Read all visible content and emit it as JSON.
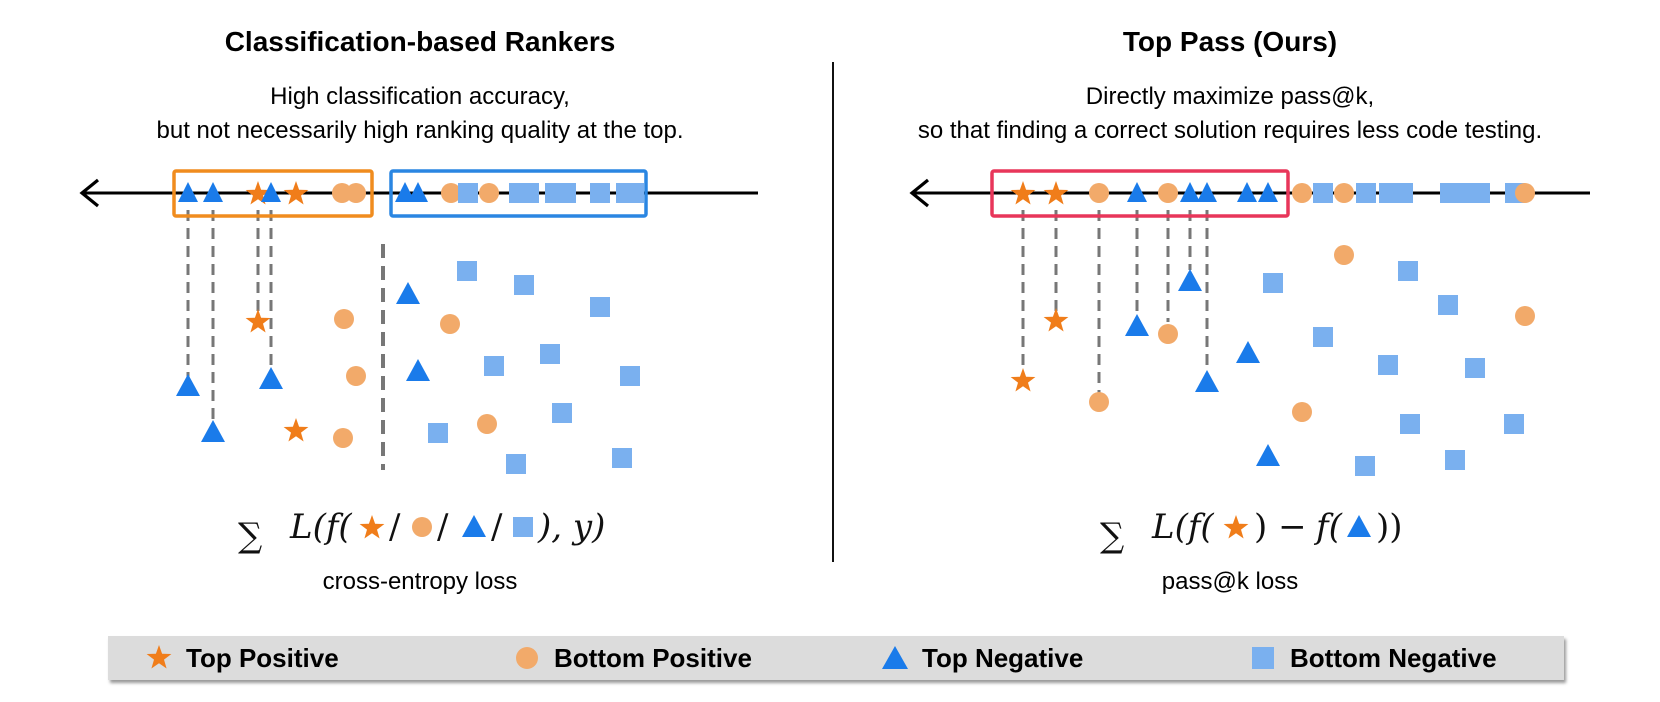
{
  "left_panel": {
    "title": "Classification-based Rankers",
    "subtitle_line1": "High classification accuracy,",
    "subtitle_line2": "but not necessarily high ranking quality at the top.",
    "loss_caption": "cross-entropy loss"
  },
  "right_panel": {
    "title": "Top Pass (Ours)",
    "subtitle_line1": "Directly maximize pass@k,",
    "subtitle_line2": "so that finding a correct solution requires less code testing.",
    "loss_caption": "pass@k loss"
  },
  "legend": {
    "top_positive": "Top Positive",
    "bottom_positive": "Bottom Positive",
    "top_negative": "Top Negative",
    "bottom_negative": "Bottom Negative"
  },
  "colors": {
    "top_positive": "#f07d1a",
    "bottom_positive": "#f2aa6a",
    "top_negative": "#1a7bea",
    "bottom_negative": "#7ab0ef",
    "classification_box_orange": "#f08c1e",
    "classification_box_blue": "#2a86e2",
    "top_pass_box": "#e8365a"
  },
  "icons": [
    "star-icon",
    "circle-icon",
    "triangle-icon",
    "square-icon",
    "arrow-left-icon"
  ]
}
